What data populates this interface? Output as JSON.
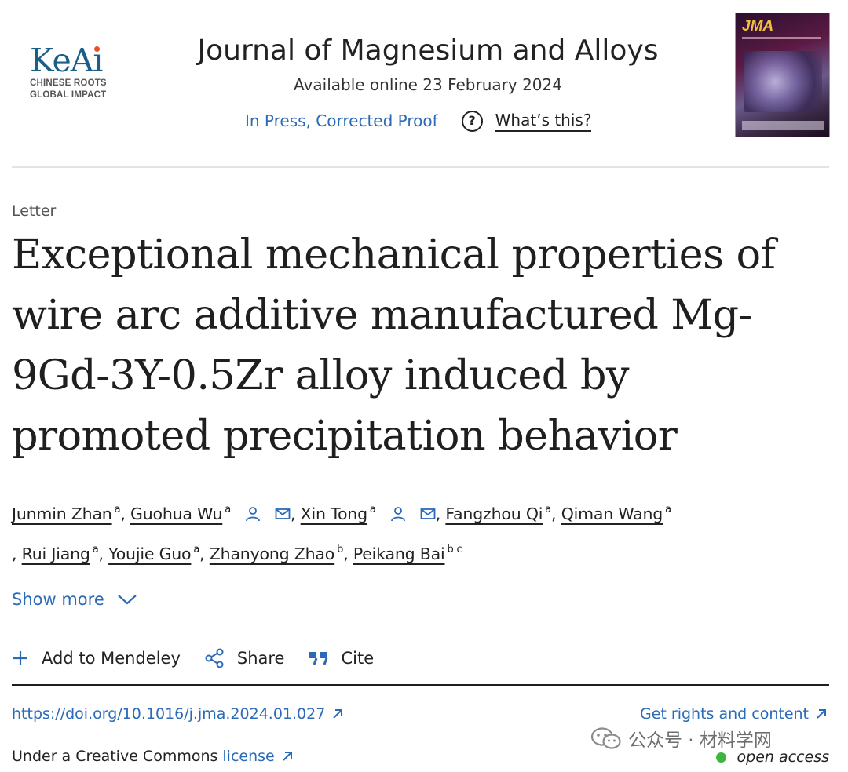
{
  "publisher": {
    "logo_text": "KeAi",
    "tagline_1": "CHINESE ROOTS",
    "tagline_2": "GLOBAL IMPACT"
  },
  "journal": {
    "title": "Journal of Magnesium and Alloys",
    "available": "Available online 23 February 2024",
    "status_link": "In Press, Corrected Proof",
    "help_label": "What’s this?",
    "cover_title": "JMA"
  },
  "article": {
    "type": "Letter",
    "title": "Exceptional mechanical properties of wire arc additive manufactured Mg-9Gd-3Y-0.5Zr alloy induced by promoted precipitation behavior",
    "authors": [
      {
        "name": "Junmin Zhan",
        "aff": "a"
      },
      {
        "name": "Guohua Wu",
        "aff": "a"
      },
      {
        "name": "Xin Tong",
        "aff": "a"
      },
      {
        "name": "Fangzhou Qi",
        "aff": "a"
      },
      {
        "name": "Qiman Wang",
        "aff": "a"
      },
      {
        "name": "Rui Jiang",
        "aff": "a"
      },
      {
        "name": "Youjie Guo",
        "aff": "a"
      },
      {
        "name": "Zhanyong Zhao",
        "aff": "b"
      },
      {
        "name": "Peikang Bai",
        "aff": "b c"
      }
    ],
    "show_more": "Show more"
  },
  "actions": {
    "mendeley": "Add to Mendeley",
    "share": "Share",
    "cite": "Cite"
  },
  "footer": {
    "doi": "https://doi.org/10.1016/j.jma.2024.01.027",
    "rights": "Get rights and content",
    "license_prefix": "Under a Creative Commons",
    "license_link": "license",
    "open_access": "open access",
    "watermark": "公众号 · 材料学网"
  },
  "colors": {
    "link": "#2a6ab8",
    "open_access_dot": "#3fb53f"
  }
}
